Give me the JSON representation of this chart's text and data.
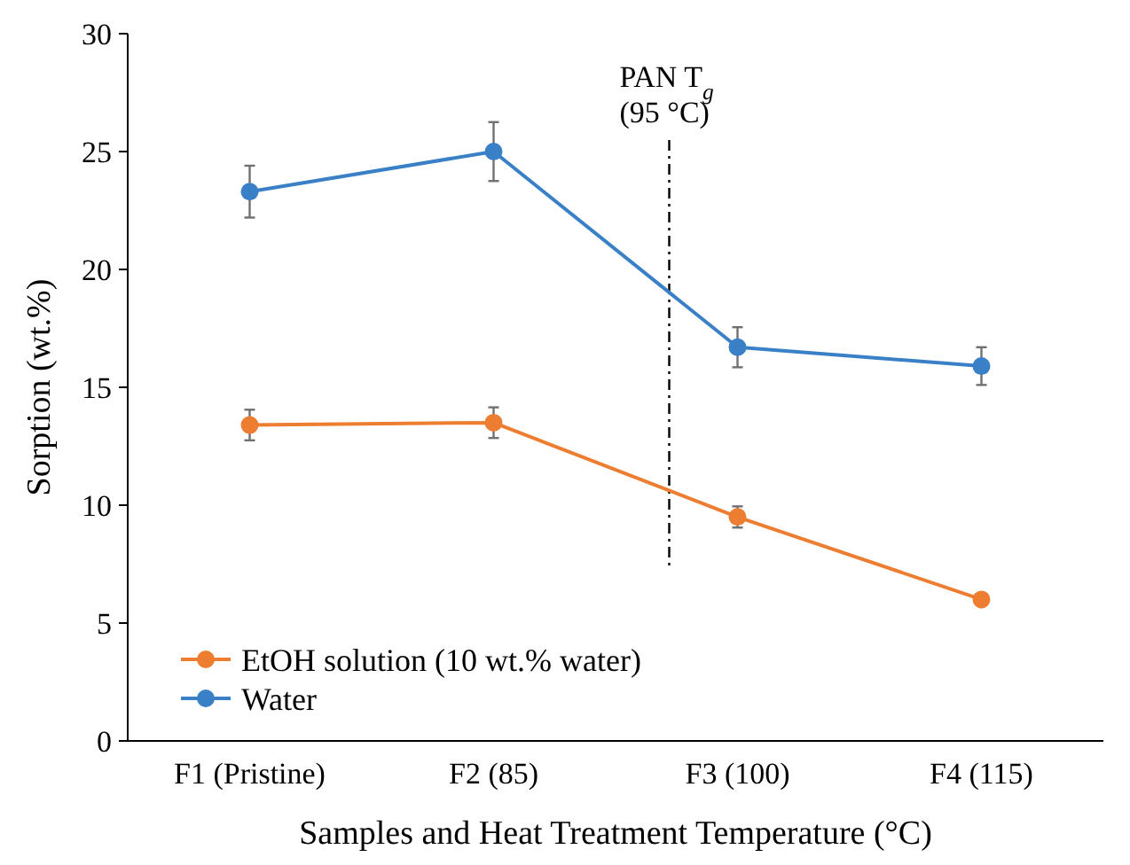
{
  "chart_data": {
    "type": "line",
    "xlabel": "Samples and Heat Treatment Temperature (°C)",
    "ylabel": "Sorption (wt.%)",
    "categories": [
      "F1 (Pristine)",
      "F2 (85)",
      "F3 (100)",
      "F4 (115)"
    ],
    "ylim": [
      0,
      30
    ],
    "yticks": [
      0,
      5,
      10,
      15,
      20,
      25,
      30
    ],
    "grid": false,
    "legend": "bottom left",
    "marker": "circle",
    "line_style": "solid",
    "series": [
      {
        "name": "EtOH solution (10 wt.% water)",
        "color": "#ed7d31",
        "values": [
          13.4,
          13.5,
          9.5,
          6.0
        ],
        "errors": [
          0.65,
          0.65,
          0.45,
          null
        ]
      },
      {
        "name": "Water",
        "color": "#3a80c6",
        "values": [
          23.3,
          25.0,
          16.7,
          15.9
        ],
        "errors": [
          1.1,
          1.25,
          0.85,
          0.8
        ]
      }
    ],
    "annotations": [
      "PAN T$_{g}$\n(95 °C)"
    ]
  }
}
